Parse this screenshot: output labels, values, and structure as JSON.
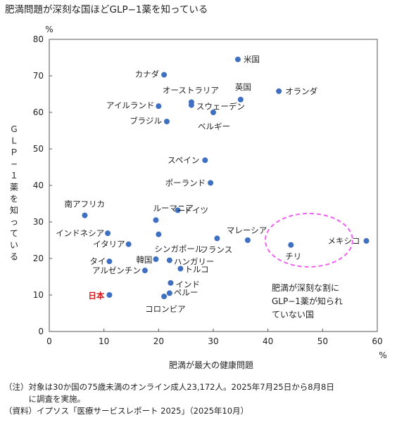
{
  "chart_data": {
    "type": "scatter",
    "title": "肥満問題が深刻な国ほどGLP−1薬を知っている",
    "xlabel": "肥満が最大の健康問題",
    "ylabel": "ＧＬＰ−１薬を知っている",
    "x_unit": "%",
    "y_unit": "%",
    "xlim": [
      0,
      60
    ],
    "ylim": [
      0,
      80
    ],
    "x_ticks": [
      "0",
      "10",
      "20",
      "30",
      "40",
      "50",
      "60"
    ],
    "y_ticks": [
      "0",
      "10",
      "20",
      "30",
      "40",
      "50",
      "60",
      "70",
      "80"
    ],
    "grid": false,
    "marker_color": "#3f6fc0",
    "highlight_color": "#d7191c",
    "points": [
      {
        "label": "米国",
        "x": 34.5,
        "y": 74.5
      },
      {
        "label": "カナダ",
        "x": 21.0,
        "y": 70.3
      },
      {
        "label": "オランダ",
        "x": 42.0,
        "y": 65.8
      },
      {
        "label": "英国",
        "x": 35.0,
        "y": 63.5
      },
      {
        "label": "オーストラリア",
        "x": 26.0,
        "y": 62.8
      },
      {
        "label": "スウェーデン",
        "x": 26.0,
        "y": 62.0
      },
      {
        "label": "アイルランド",
        "x": 20.0,
        "y": 61.7
      },
      {
        "label": "ベルギー",
        "x": 30.0,
        "y": 60.0
      },
      {
        "label": "ブラジル",
        "x": 21.5,
        "y": 57.5
      },
      {
        "label": "スペイン",
        "x": 28.5,
        "y": 46.9
      },
      {
        "label": "ポーランド",
        "x": 29.5,
        "y": 40.7
      },
      {
        "label": "南アフリカ",
        "x": 6.5,
        "y": 31.8
      },
      {
        "label": "ルーマニア",
        "x": 19.5,
        "y": 30.5
      },
      {
        "label": "ドイツ",
        "x": 23.5,
        "y": 33.2
      },
      {
        "label": "インドネシア",
        "x": 10.7,
        "y": 26.9
      },
      {
        "label": "シンガポール",
        "x": 20.0,
        "y": 26.6
      },
      {
        "label": "イタリア",
        "x": 14.5,
        "y": 23.9
      },
      {
        "label": "マレーシア",
        "x": 36.3,
        "y": 25.0
      },
      {
        "label": "フランス",
        "x": 30.7,
        "y": 25.5
      },
      {
        "label": "メキシコ",
        "x": 58.0,
        "y": 24.8
      },
      {
        "label": "チリ",
        "x": 44.2,
        "y": 23.7
      },
      {
        "label": "タイ",
        "x": 11.0,
        "y": 19.2
      },
      {
        "label": "韓国",
        "x": 19.5,
        "y": 19.8
      },
      {
        "label": "ハンガリー",
        "x": 22.0,
        "y": 19.5
      },
      {
        "label": "アルゼンチン",
        "x": 17.5,
        "y": 16.7
      },
      {
        "label": "トルコ",
        "x": 24.0,
        "y": 17.2
      },
      {
        "label": "インド",
        "x": 22.2,
        "y": 13.3
      },
      {
        "label": "ペルー",
        "x": 22.0,
        "y": 10.5
      },
      {
        "label": "コロンビア",
        "x": 21.0,
        "y": 9.6
      },
      {
        "label": "日本",
        "x": 11.0,
        "y": 10.0,
        "highlight": true
      }
    ],
    "annotation": {
      "lines": [
        "肥満が深刻な割に",
        "GLP−1薬が知られ",
        "ていない国"
      ],
      "ellipse_color": "#ef60ef"
    }
  },
  "notes": {
    "line1": "（注）対象は30か国の75歳未満のオンライン成人23,172人。2025年7月25日から8月8日",
    "line2": "　　　に調査を実施。",
    "line3": "（資料）イプソス「医療サービスレポート 2025」（2025年10月）"
  }
}
